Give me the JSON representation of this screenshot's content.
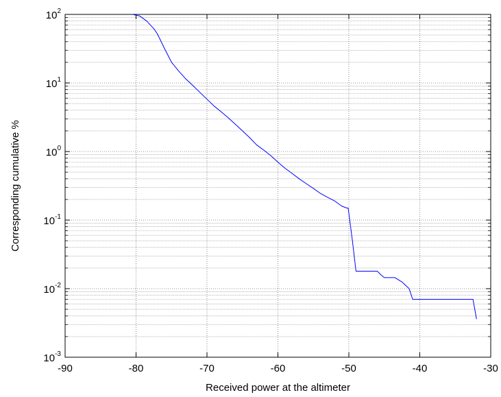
{
  "chart_data": {
    "type": "line",
    "title": "",
    "xlabel": "Received power at the altimeter",
    "ylabel": "Corresponding cumulative %",
    "xlim": [
      -90,
      -30
    ],
    "ylim": [
      0.001,
      100
    ],
    "yscale": "log",
    "grid": true,
    "minor_grid": true,
    "legend": "none",
    "x_ticks": [
      "-90",
      "-80",
      "-70",
      "-60",
      "-50",
      "-40",
      "-30"
    ],
    "y_ticks": [
      {
        "base": "10",
        "exp": "-3"
      },
      {
        "base": "10",
        "exp": "-2"
      },
      {
        "base": "10",
        "exp": "-1"
      },
      {
        "base": "10",
        "exp": "0"
      },
      {
        "base": "10",
        "exp": "1"
      },
      {
        "base": "10",
        "exp": "2"
      }
    ],
    "series": [
      {
        "color": "#0000ff",
        "x": [
          -80.5,
          -79.5,
          -78.5,
          -77.5,
          -77,
          -76,
          -75,
          -74,
          -73,
          -72,
          -71,
          -70,
          -69,
          -68,
          -67,
          -66,
          -65,
          -64,
          -63,
          -62,
          -61,
          -60,
          -59,
          -58,
          -57,
          -56,
          -55,
          -54,
          -53,
          -52,
          -51,
          -50.3,
          -50.1,
          -49.5,
          -49,
          -48,
          -47,
          -46,
          -45.5,
          -45,
          -44,
          -43.5,
          -42.5,
          -41.5,
          -41,
          -40,
          -38,
          -36,
          -34,
          -33,
          -32.5,
          -32
        ],
        "y": [
          100,
          95,
          80,
          62,
          52,
          32,
          20,
          15,
          11.5,
          9.2,
          7.3,
          5.8,
          4.6,
          3.8,
          3.1,
          2.5,
          2.0,
          1.6,
          1.25,
          1.05,
          0.87,
          0.7,
          0.57,
          0.48,
          0.4,
          0.34,
          0.29,
          0.245,
          0.215,
          0.19,
          0.16,
          0.15,
          0.15,
          0.05,
          0.018,
          0.018,
          0.018,
          0.018,
          0.016,
          0.0145,
          0.0145,
          0.0145,
          0.0125,
          0.01,
          0.007,
          0.007,
          0.007,
          0.007,
          0.007,
          0.007,
          0.007,
          0.0036
        ]
      }
    ]
  }
}
